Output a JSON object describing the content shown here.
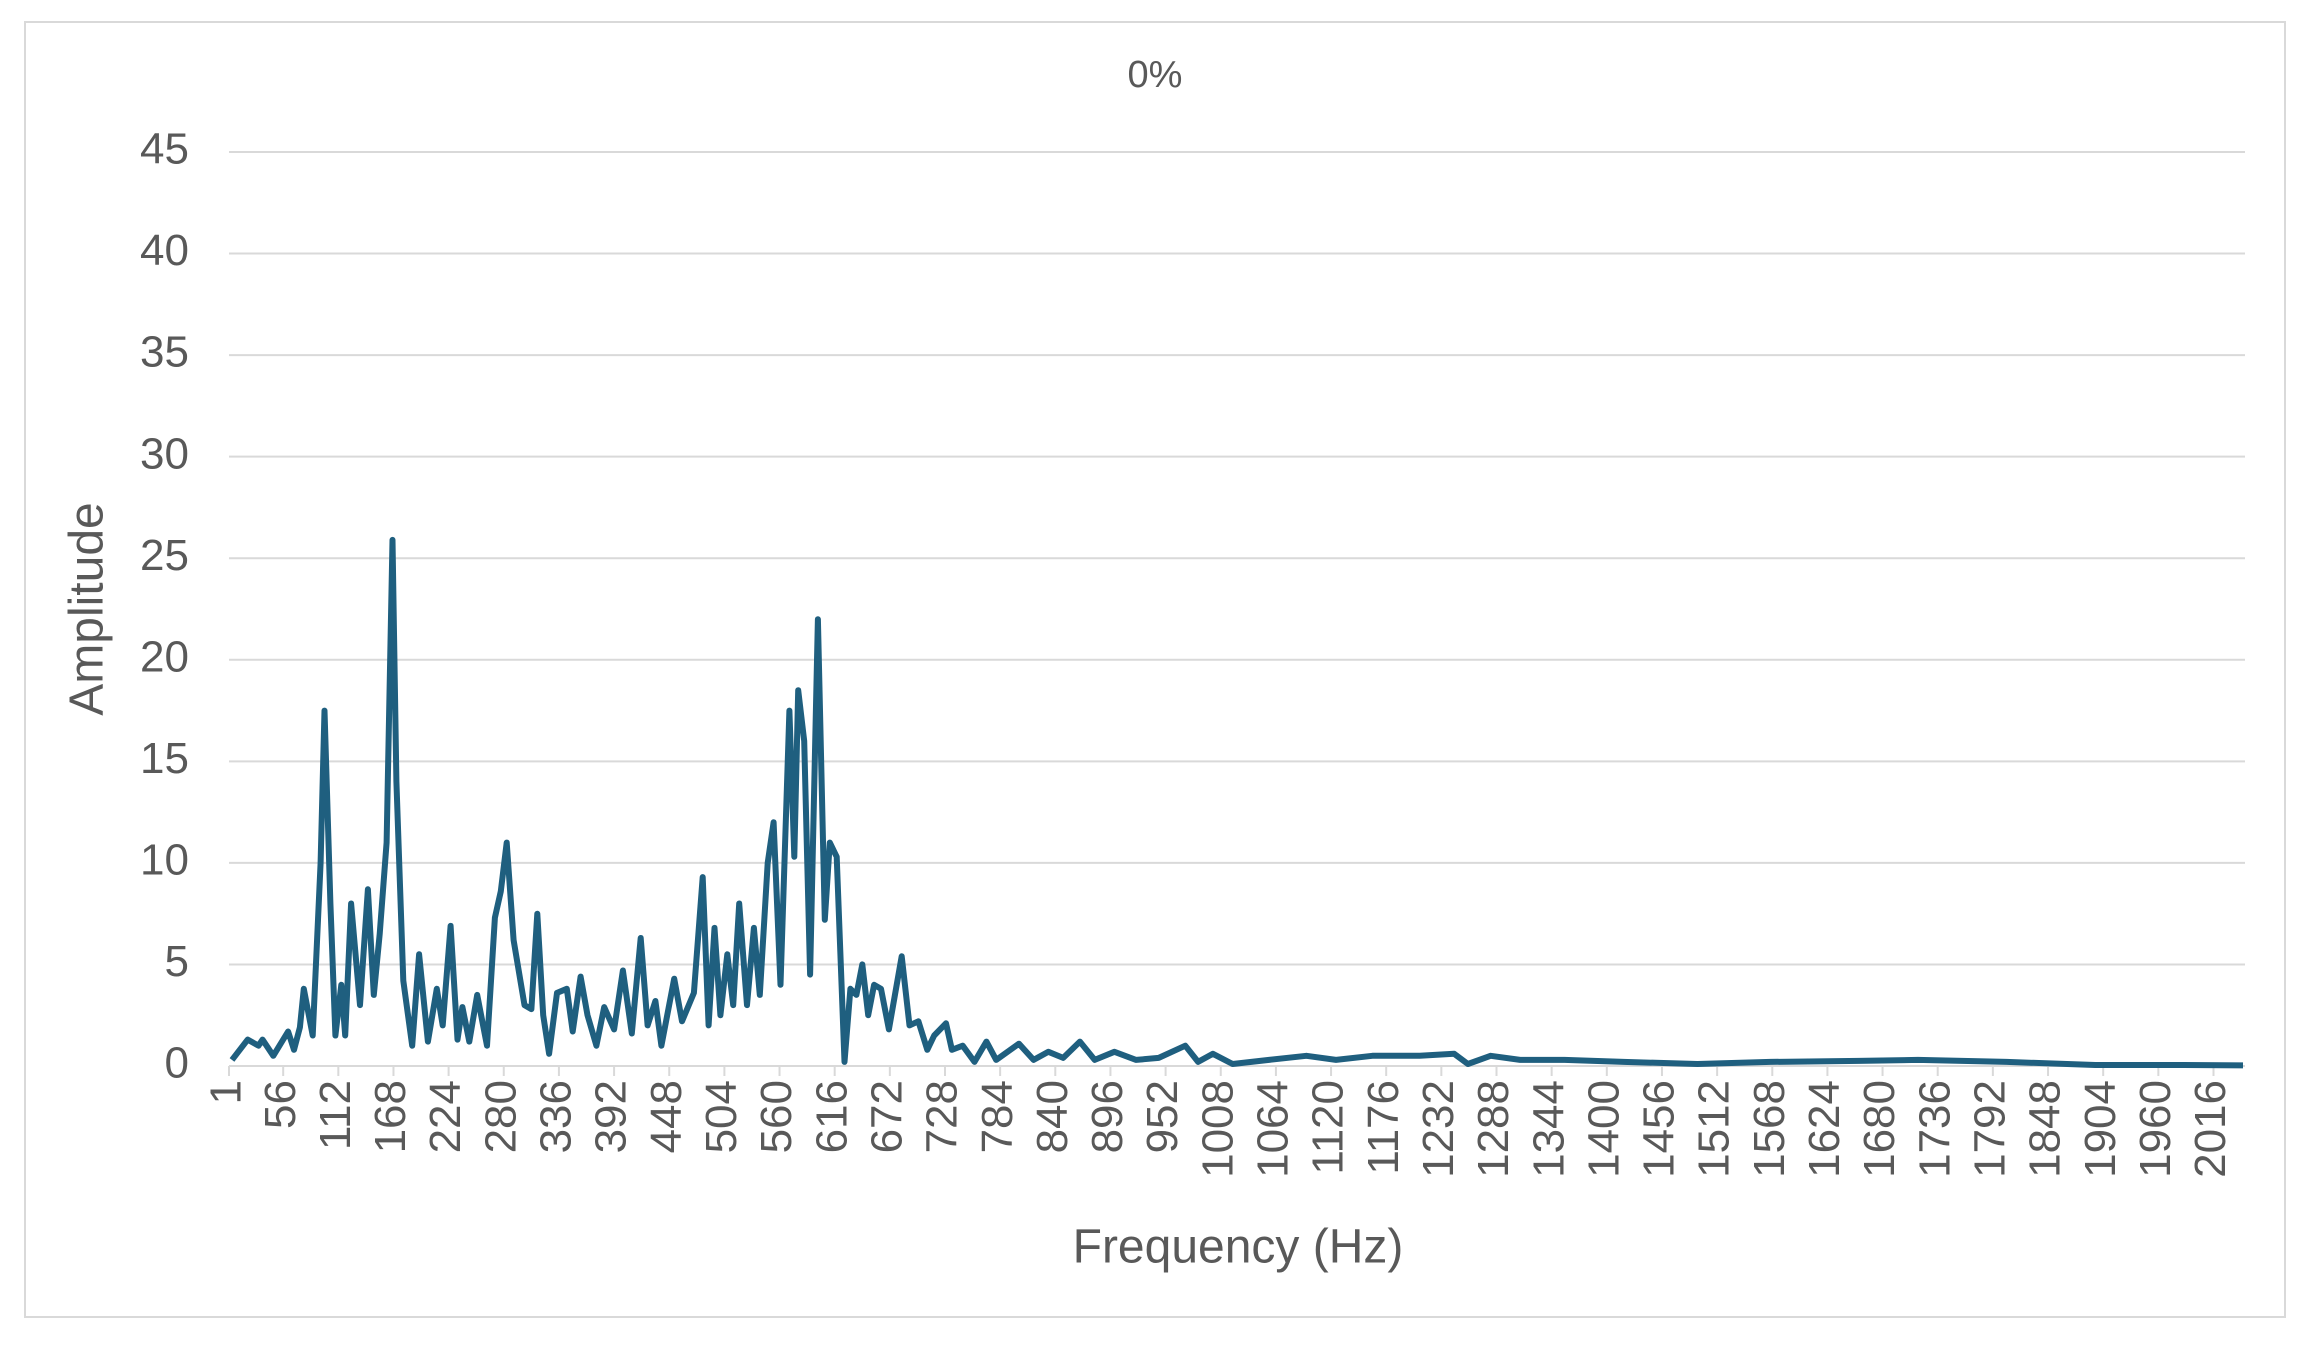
{
  "chart_data": {
    "type": "line",
    "title": "0%",
    "x_label": "Frequency (Hz)",
    "y_label": "Amplitude",
    "xlim": [
      1,
      2048
    ],
    "ylim": [
      0,
      45
    ],
    "xticks": [
      1,
      56,
      112,
      168,
      224,
      280,
      336,
      392,
      448,
      504,
      560,
      616,
      672,
      728,
      784,
      840,
      896,
      952,
      1008,
      1064,
      1120,
      1176,
      1232,
      1288,
      1344,
      1400,
      1456,
      1512,
      1568,
      1624,
      1680,
      1736,
      1792,
      1848,
      1904,
      1960,
      2016
    ],
    "yticks": [
      0,
      5,
      10,
      15,
      20,
      25,
      30,
      35,
      40,
      45
    ],
    "grid": true,
    "series": [
      {
        "name": "Amplitude",
        "color": "#1f5f7f",
        "x": [
          4,
          20,
          31,
          35,
          46,
          61,
          67,
          73,
          77,
          86,
          94,
          98,
          104,
          109,
          115,
          119,
          125,
          134,
          142,
          148,
          154,
          161,
          167,
          171,
          178,
          187,
          194,
          203,
          212,
          218,
          226,
          233,
          238,
          245,
          253,
          263,
          271,
          277,
          283,
          290,
          301,
          308,
          314,
          320,
          326,
          334,
          344,
          350,
          358,
          365,
          374,
          382,
          392,
          401,
          410,
          419,
          426,
          434,
          440,
          453,
          461,
          473,
          482,
          488,
          494,
          500,
          507,
          513,
          519,
          527,
          534,
          540,
          548,
          554,
          561,
          570,
          575,
          579,
          585,
          591,
          599,
          606,
          611,
          618,
          626,
          632,
          638,
          644,
          650,
          656,
          663,
          671,
          684,
          692,
          701,
          710,
          717,
          729,
          735,
          746,
          758,
          770,
          780,
          803,
          818,
          833,
          848,
          865,
          880,
          900,
          922,
          945,
          972,
          985,
          1000,
          1020,
          1057,
          1095,
          1125,
          1162,
          1210,
          1245,
          1259,
          1282,
          1312,
          1357,
          1417,
          1492,
          1566,
          1656,
          1716,
          1806,
          1896,
          1986,
          2046
        ],
        "values": [
          0.3,
          1.3,
          1.0,
          1.3,
          0.5,
          1.7,
          0.8,
          1.9,
          3.8,
          1.5,
          10,
          17.5,
          8,
          1.5,
          4,
          1.5,
          8,
          3,
          8.7,
          3.5,
          6.5,
          11,
          25.9,
          14,
          4.2,
          1.0,
          5.5,
          1.2,
          3.8,
          2.0,
          6.9,
          1.3,
          2.9,
          1.2,
          3.5,
          1.0,
          7.3,
          8.6,
          11,
          6.2,
          3.0,
          2.8,
          7.5,
          2.5,
          0.6,
          3.6,
          3.8,
          1.7,
          4.4,
          2.5,
          1.0,
          2.9,
          1.8,
          4.7,
          1.6,
          6.3,
          2.0,
          3.2,
          1.0,
          4.3,
          2.2,
          3.6,
          9.3,
          2.0,
          6.8,
          2.5,
          5.5,
          3.0,
          8.0,
          3.0,
          6.8,
          3.5,
          10,
          12,
          4.0,
          17.5,
          10.3,
          18.5,
          16,
          4.5,
          22,
          7.2,
          11,
          10.3,
          0.2,
          3.8,
          3.5,
          5.0,
          2.5,
          4.0,
          3.8,
          1.8,
          5.4,
          2.0,
          2.2,
          0.8,
          1.5,
          2.1,
          0.8,
          1.0,
          0.2,
          1.2,
          0.3,
          1.1,
          0.3,
          0.7,
          0.4,
          1.2,
          0.3,
          0.7,
          0.3,
          0.4,
          1.0,
          0.2,
          0.6,
          0.1,
          0.3,
          0.5,
          0.3,
          0.5,
          0.5,
          0.6,
          0.1,
          0.5,
          0.3,
          0.3,
          0.2,
          0.1,
          0.2,
          0.25,
          0.3,
          0.2,
          0.05,
          0.05,
          0.03
        ]
      }
    ]
  }
}
